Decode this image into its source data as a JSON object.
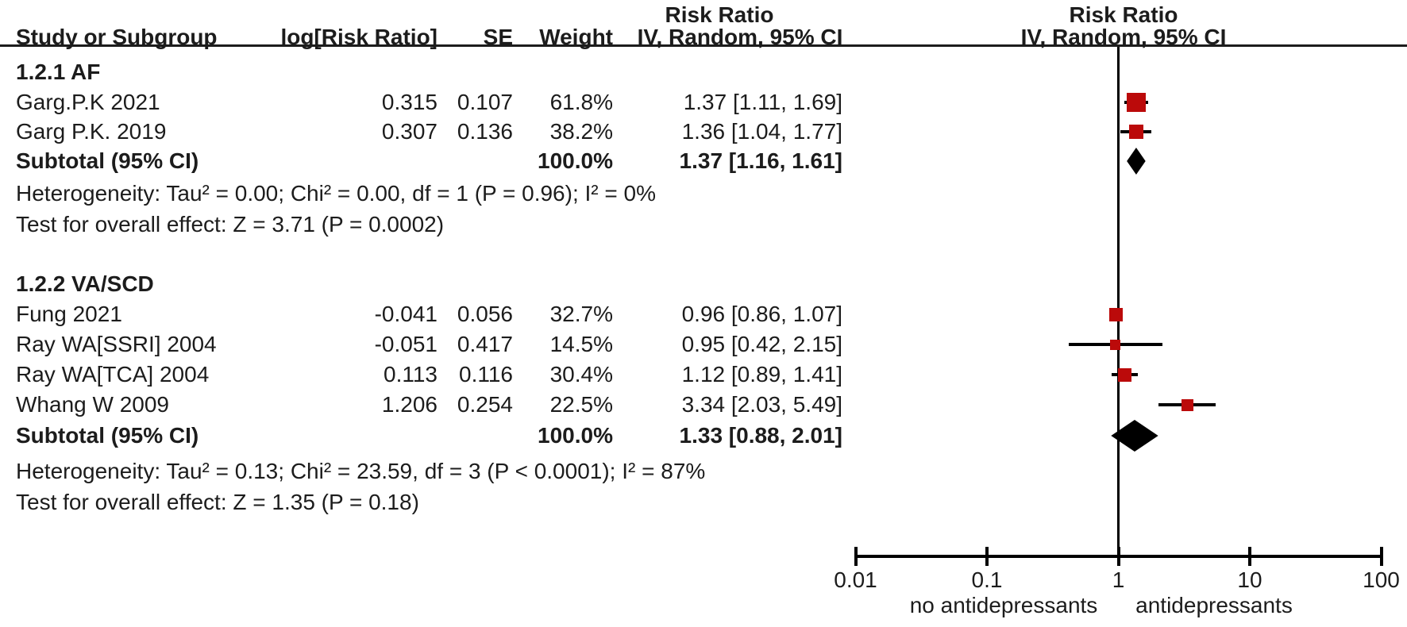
{
  "header": {
    "left_effect_col": {
      "line1": "Risk Ratio",
      "line2": "IV, Random, 95% CI"
    },
    "right_plot_col": {
      "line1": "Risk Ratio",
      "line2": "IV, Random, 95% CI"
    },
    "columns": {
      "study": "Study or Subgroup",
      "log_rr": "log[Risk Ratio]",
      "se": "SE",
      "weight": "Weight"
    }
  },
  "chart_data": {
    "type": "forest",
    "effect_measure": "Risk Ratio",
    "model": "IV, Random, 95% CI",
    "colors": {
      "marker_red": "#BB0A0A",
      "line_black": "#000000",
      "text": "#1c1c1c"
    },
    "axis": {
      "scale": "log10",
      "ticks": [
        0.01,
        0.1,
        1,
        10,
        100
      ],
      "tick_labels": [
        "0.01",
        "0.1",
        "1",
        "10",
        "100"
      ],
      "left_label": "no antidepressants",
      "right_label": "antidepressants",
      "null_line": 1
    },
    "sections": [
      {
        "label": "1.2.1 AF",
        "studies": [
          {
            "name": "Garg.P.K 2021",
            "log_rr": "0.315",
            "se": "0.107",
            "weight": "61.8%",
            "weight_pct": 61.8,
            "ci_text": "1.37 [1.11, 1.69]",
            "rr": 1.37,
            "low": 1.11,
            "high": 1.69
          },
          {
            "name": "Garg P.K. 2019",
            "log_rr": "0.307",
            "se": "0.136",
            "weight": "38.2%",
            "weight_pct": 38.2,
            "ci_text": "1.36 [1.04, 1.77]",
            "rr": 1.36,
            "low": 1.04,
            "high": 1.77
          }
        ],
        "subtotal": {
          "label": "Subtotal (95% CI)",
          "weight": "100.0%",
          "ci_text": "1.37 [1.16, 1.61]",
          "rr": 1.37,
          "low": 1.16,
          "high": 1.61
        },
        "heterogeneity": "Heterogeneity: Tau² = 0.00; Chi² = 0.00, df = 1 (P = 0.96); I² = 0%",
        "overall_effect": "Test for overall effect: Z = 3.71 (P = 0.0002)"
      },
      {
        "label": "1.2.2 VA/SCD",
        "studies": [
          {
            "name": "Fung 2021",
            "log_rr": "-0.041",
            "se": "0.056",
            "weight": "32.7%",
            "weight_pct": 32.7,
            "ci_text": "0.96 [0.86, 1.07]",
            "rr": 0.96,
            "low": 0.86,
            "high": 1.07
          },
          {
            "name": "Ray WA[SSRI] 2004",
            "log_rr": "-0.051",
            "se": "0.417",
            "weight": "14.5%",
            "weight_pct": 14.5,
            "ci_text": "0.95 [0.42, 2.15]",
            "rr": 0.95,
            "low": 0.42,
            "high": 2.15
          },
          {
            "name": "Ray WA[TCA] 2004",
            "log_rr": "0.113",
            "se": "0.116",
            "weight": "30.4%",
            "weight_pct": 30.4,
            "ci_text": "1.12 [0.89, 1.41]",
            "rr": 1.12,
            "low": 0.89,
            "high": 1.41
          },
          {
            "name": "Whang W 2009",
            "log_rr": "1.206",
            "se": "0.254",
            "weight": "22.5%",
            "weight_pct": 22.5,
            "ci_text": "3.34 [2.03, 5.49]",
            "rr": 3.34,
            "low": 2.03,
            "high": 5.49
          }
        ],
        "subtotal": {
          "label": "Subtotal (95% CI)",
          "weight": "100.0%",
          "ci_text": "1.33 [0.88, 2.01]",
          "rr": 1.33,
          "low": 0.88,
          "high": 2.01
        },
        "heterogeneity": "Heterogeneity: Tau² = 0.13; Chi² = 23.59, df = 3 (P < 0.0001); I² = 87%",
        "overall_effect": "Test for overall effect: Z = 1.35 (P = 0.18)"
      }
    ]
  }
}
